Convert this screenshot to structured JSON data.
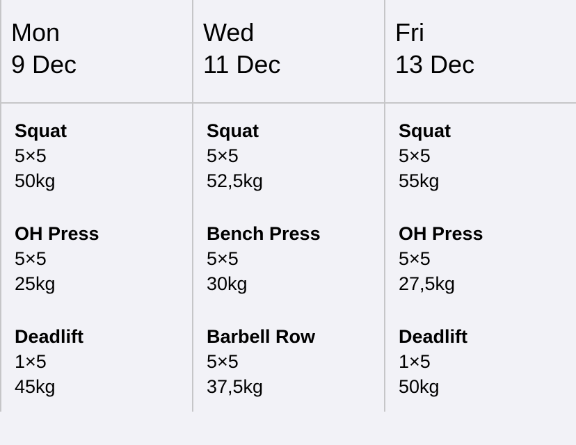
{
  "days": [
    {
      "weekday": "Mon",
      "date": "9 Dec",
      "exercises": [
        {
          "name": "Squat",
          "sets": "5×5",
          "weight": "50kg"
        },
        {
          "name": "OH Press",
          "sets": "5×5",
          "weight": "25kg"
        },
        {
          "name": "Deadlift",
          "sets": "1×5",
          "weight": "45kg"
        }
      ]
    },
    {
      "weekday": "Wed",
      "date": "11 Dec",
      "exercises": [
        {
          "name": "Squat",
          "sets": "5×5",
          "weight": "52,5kg"
        },
        {
          "name": "Bench Press",
          "sets": "5×5",
          "weight": "30kg"
        },
        {
          "name": "Barbell Row",
          "sets": "5×5",
          "weight": "37,5kg"
        }
      ]
    },
    {
      "weekday": "Fri",
      "date": "13 Dec",
      "exercises": [
        {
          "name": "Squat",
          "sets": "5×5",
          "weight": "55kg"
        },
        {
          "name": "OH Press",
          "sets": "5×5",
          "weight": "27,5kg"
        },
        {
          "name": "Deadlift",
          "sets": "1×5",
          "weight": "50kg"
        }
      ]
    }
  ]
}
